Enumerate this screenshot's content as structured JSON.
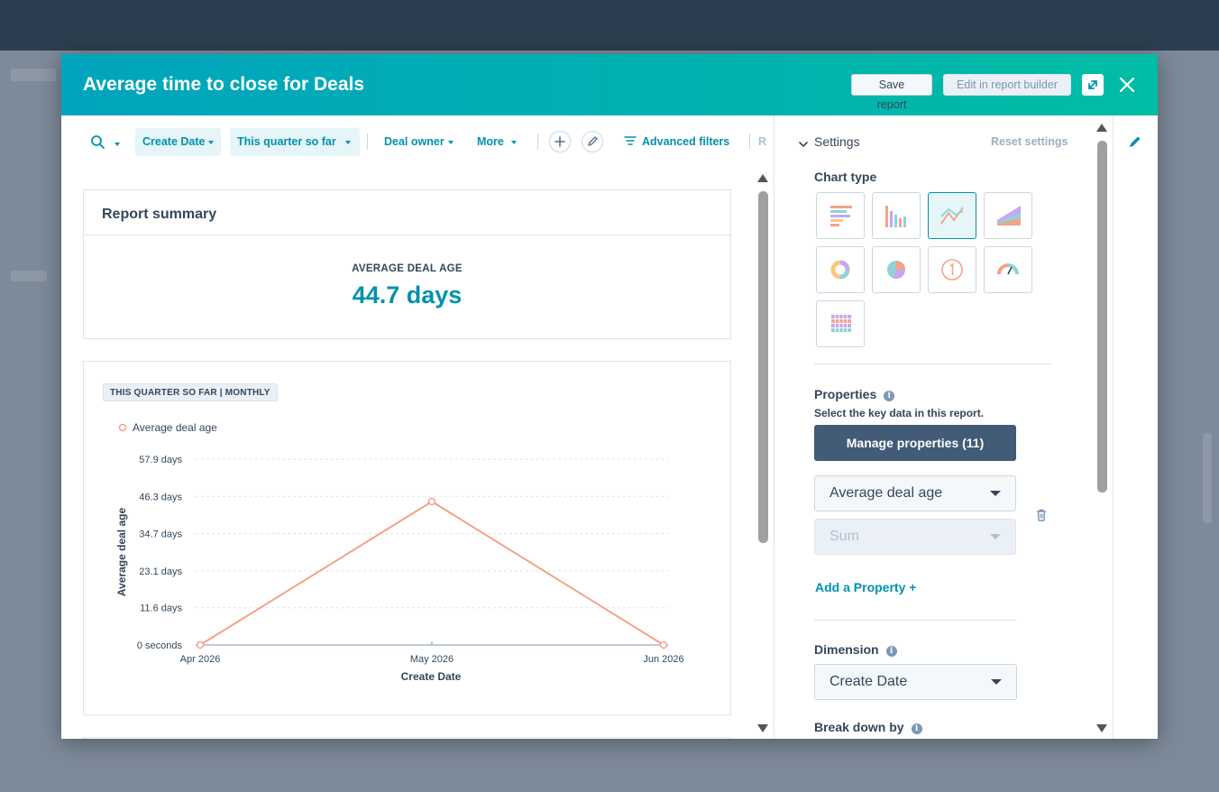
{
  "modal": {
    "title": "Average time to close for Deals",
    "save_label": "Save report",
    "edit_label": "Edit in report builder"
  },
  "filters": {
    "create_date": "Create Date",
    "date_range": "This quarter so far",
    "deal_owner": "Deal owner",
    "more": "More",
    "advanced": "Advanced filters",
    "cut_off": "R"
  },
  "summary": {
    "title": "Report summary",
    "label": "AVERAGE DEAL AGE",
    "value": "44.7 days"
  },
  "chart_card": {
    "tag": "THIS QUARTER SO FAR | MONTHLY"
  },
  "chart_data": {
    "type": "line",
    "categories": [
      "Apr 2026",
      "May 2026",
      "Jun 2026"
    ],
    "series": [
      {
        "name": "Average deal age",
        "values": [
          0,
          44.7,
          0
        ],
        "color": "#f2a38a"
      }
    ],
    "title": "",
    "xlabel": "Create Date",
    "ylabel": "Average deal age",
    "ylim": [
      0,
      57.9
    ],
    "yticks": [
      0,
      11.6,
      23.1,
      34.7,
      46.3,
      57.9
    ],
    "ytick_labels": [
      "0 seconds",
      "11.6 days",
      "23.1 days",
      "34.7 days",
      "46.3 days",
      "57.9 days"
    ],
    "grid": true,
    "legend": "top-left"
  },
  "settings": {
    "title": "Settings",
    "reset": "Reset settings",
    "chart_type_label": "Chart type",
    "properties_label": "Properties",
    "properties_help": "Select the key data in this report.",
    "manage_btn": "Manage properties (11)",
    "property_value": "Average deal age",
    "aggregation_value": "Sum",
    "add_property": "Add a Property +",
    "dimension_label": "Dimension",
    "dimension_value": "Create Date",
    "breakdown_label": "Break down by"
  },
  "colors": {
    "accent": "#0091ae",
    "header_start": "#00a4bd",
    "header_end": "#00bda5",
    "line": "#f2a38a",
    "dark_button": "#425b76"
  }
}
